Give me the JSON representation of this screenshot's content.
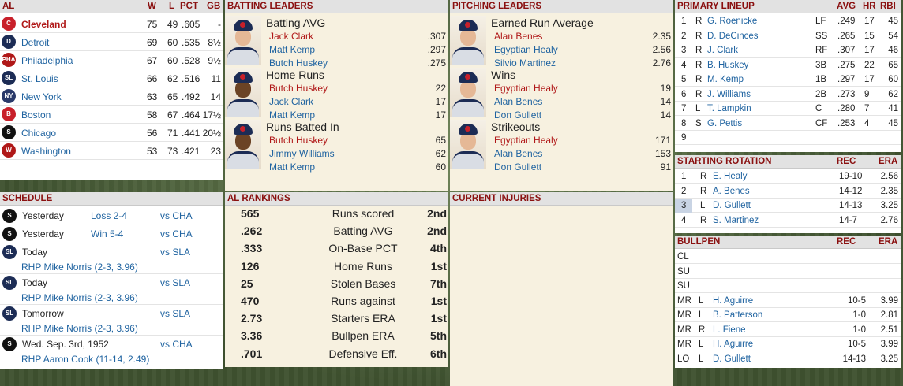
{
  "standings": {
    "header": {
      "league": "AL",
      "w": "W",
      "l": "L",
      "pct": "PCT",
      "gb": "GB"
    },
    "teams": [
      {
        "name": "Cleveland",
        "w": "75",
        "l": "49",
        "pct": ".605",
        "gb": "-",
        "logo": "C",
        "logo_color": "#c8202a"
      },
      {
        "name": "Detroit",
        "w": "69",
        "l": "60",
        "pct": ".535",
        "gb": "8½",
        "logo": "D",
        "logo_color": "#1c2c55"
      },
      {
        "name": "Philadelphia",
        "w": "67",
        "l": "60",
        "pct": ".528",
        "gb": "9½",
        "logo": "PHA",
        "logo_color": "#b01818"
      },
      {
        "name": "St. Louis",
        "w": "66",
        "l": "62",
        "pct": ".516",
        "gb": "11",
        "logo": "SL",
        "logo_color": "#1c2c55"
      },
      {
        "name": "New York",
        "w": "63",
        "l": "65",
        "pct": ".492",
        "gb": "14",
        "logo": "NY",
        "logo_color": "#2a3a6a"
      },
      {
        "name": "Boston",
        "w": "58",
        "l": "67",
        "pct": ".464",
        "gb": "17½",
        "logo": "B",
        "logo_color": "#c8202a"
      },
      {
        "name": "Chicago",
        "w": "56",
        "l": "71",
        "pct": ".441",
        "gb": "20½",
        "logo": "S",
        "logo_color": "#111111"
      },
      {
        "name": "Washington",
        "w": "53",
        "l": "73",
        "pct": ".421",
        "gb": "23",
        "logo": "W",
        "logo_color": "#b01818"
      }
    ]
  },
  "batting": {
    "title": "BATTING LEADERS",
    "cats": [
      {
        "name": "Batting AVG",
        "skin": "#e5b896",
        "rows": [
          {
            "p": "Jack Clark",
            "v": ".307",
            "c": "red"
          },
          {
            "p": "Matt Kemp",
            "v": ".297",
            "c": "blue"
          },
          {
            "p": "Butch Huskey",
            "v": ".275",
            "c": "blue"
          }
        ]
      },
      {
        "name": "Home Runs",
        "skin": "#6b4325",
        "rows": [
          {
            "p": "Butch Huskey",
            "v": "22",
            "c": "red"
          },
          {
            "p": "Jack Clark",
            "v": "17",
            "c": "blue"
          },
          {
            "p": "Matt Kemp",
            "v": "17",
            "c": "blue"
          }
        ]
      },
      {
        "name": "Runs Batted In",
        "skin": "#6b4325",
        "rows": [
          {
            "p": "Butch Huskey",
            "v": "65",
            "c": "red"
          },
          {
            "p": "Jimmy Williams",
            "v": "62",
            "c": "blue"
          },
          {
            "p": "Matt Kemp",
            "v": "60",
            "c": "blue"
          }
        ]
      }
    ]
  },
  "pitching": {
    "title": "PITCHING LEADERS",
    "cats": [
      {
        "name": "Earned Run Average",
        "skin": "#e5b896",
        "rows": [
          {
            "p": "Alan Benes",
            "v": "2.35",
            "c": "red"
          },
          {
            "p": "Egyptian Healy",
            "v": "2.56",
            "c": "blue"
          },
          {
            "p": "Silvio Martinez",
            "v": "2.76",
            "c": "blue"
          }
        ]
      },
      {
        "name": "Wins",
        "skin": "#e5b896",
        "rows": [
          {
            "p": "Egyptian Healy",
            "v": "19",
            "c": "red"
          },
          {
            "p": "Alan Benes",
            "v": "14",
            "c": "blue"
          },
          {
            "p": "Don Gullett",
            "v": "14",
            "c": "blue"
          }
        ]
      },
      {
        "name": "Strikeouts",
        "skin": "#e5b896",
        "rows": [
          {
            "p": "Egyptian Healy",
            "v": "171",
            "c": "red"
          },
          {
            "p": "Alan Benes",
            "v": "153",
            "c": "blue"
          },
          {
            "p": "Don Gullett",
            "v": "91",
            "c": "blue"
          }
        ]
      }
    ]
  },
  "lineup": {
    "title": "PRIMARY LINEUP",
    "h_avg": "AVG",
    "h_hr": "HR",
    "h_rbi": "RBI",
    "rows": [
      {
        "n": "1",
        "h": "R",
        "p": "G. Roenicke",
        "pos": "LF",
        "avg": ".249",
        "hr": "17",
        "rbi": "45"
      },
      {
        "n": "2",
        "h": "R",
        "p": "D. DeCinces",
        "pos": "SS",
        "avg": ".265",
        "hr": "15",
        "rbi": "54"
      },
      {
        "n": "3",
        "h": "R",
        "p": "J. Clark",
        "pos": "RF",
        "avg": ".307",
        "hr": "17",
        "rbi": "46"
      },
      {
        "n": "4",
        "h": "R",
        "p": "B. Huskey",
        "pos": "3B",
        "avg": ".275",
        "hr": "22",
        "rbi": "65"
      },
      {
        "n": "5",
        "h": "R",
        "p": "M. Kemp",
        "pos": "1B",
        "avg": ".297",
        "hr": "17",
        "rbi": "60"
      },
      {
        "n": "6",
        "h": "R",
        "p": "J. Williams",
        "pos": "2B",
        "avg": ".273",
        "hr": "9",
        "rbi": "62"
      },
      {
        "n": "7",
        "h": "L",
        "p": "T. Lampkin",
        "pos": "C",
        "avg": ".280",
        "hr": "7",
        "rbi": "41"
      },
      {
        "n": "8",
        "h": "S",
        "p": "G. Pettis",
        "pos": "CF",
        "avg": ".253",
        "hr": "4",
        "rbi": "45"
      },
      {
        "n": "9",
        "h": "",
        "p": "",
        "pos": "",
        "avg": "",
        "hr": "",
        "rbi": ""
      }
    ]
  },
  "rotation": {
    "title": "STARTING ROTATION",
    "h_rec": "REC",
    "h_era": "ERA",
    "rows": [
      {
        "n": "1",
        "h": "R",
        "p": "E. Healy",
        "rec": "19-10",
        "era": "2.56"
      },
      {
        "n": "2",
        "h": "R",
        "p": "A. Benes",
        "rec": "14-12",
        "era": "2.35"
      },
      {
        "n": "3",
        "h": "L",
        "p": "D. Gullett",
        "rec": "14-13",
        "era": "3.25"
      },
      {
        "n": "4",
        "h": "R",
        "p": "S. Martinez",
        "rec": "14-7",
        "era": "2.76"
      }
    ]
  },
  "bullpen": {
    "title": "BULLPEN",
    "h_rec": "REC",
    "h_era": "ERA",
    "rows": [
      {
        "role": "CL",
        "h": "",
        "p": "",
        "rec": "",
        "era": ""
      },
      {
        "role": "SU",
        "h": "",
        "p": "",
        "rec": "",
        "era": ""
      },
      {
        "role": "SU",
        "h": "",
        "p": "",
        "rec": "",
        "era": ""
      },
      {
        "role": "MR",
        "h": "L",
        "p": "H. Aguirre",
        "rec": "10-5",
        "era": "3.99"
      },
      {
        "role": "MR",
        "h": "L",
        "p": "B. Patterson",
        "rec": "1-0",
        "era": "2.81"
      },
      {
        "role": "MR",
        "h": "R",
        "p": "L. Fiene",
        "rec": "1-0",
        "era": "2.51"
      },
      {
        "role": "MR",
        "h": "L",
        "p": "H. Aguirre",
        "rec": "10-5",
        "era": "3.99"
      },
      {
        "role": "LO",
        "h": "L",
        "p": "D. Gullett",
        "rec": "14-13",
        "era": "3.25"
      }
    ]
  },
  "schedule": {
    "title": "SCHEDULE",
    "games": [
      {
        "logo": "S",
        "logo_color": "#111111",
        "when": "Yesterday",
        "result": "Loss 2-4",
        "opp": "vs CHA",
        "note": ""
      },
      {
        "logo": "S",
        "logo_color": "#111111",
        "when": "Yesterday",
        "result": "Win 5-4",
        "opp": "vs CHA",
        "note": ""
      },
      {
        "logo": "SL",
        "logo_color": "#1c2c55",
        "when": "Today",
        "result": "",
        "opp": "vs SLA",
        "note": "RHP Mike Norris (2-3, 3.96)"
      },
      {
        "logo": "SL",
        "logo_color": "#1c2c55",
        "when": "Today",
        "result": "",
        "opp": "vs SLA",
        "note": "RHP Mike Norris (2-3, 3.96)"
      },
      {
        "logo": "SL",
        "logo_color": "#1c2c55",
        "when": "Tomorrow",
        "result": "",
        "opp": "vs SLA",
        "note": "RHP Mike Norris (2-3, 3.96)"
      },
      {
        "logo": "S",
        "logo_color": "#111111",
        "when": "Wed. Sep. 3rd, 1952",
        "result": "",
        "opp": "vs CHA",
        "note": "RHP Aaron Cook (11-14, 2.49)"
      }
    ]
  },
  "rankings": {
    "title": "AL RANKINGS",
    "rows": [
      {
        "v": "565",
        "l": "Runs scored",
        "r": "2nd"
      },
      {
        "v": ".262",
        "l": "Batting AVG",
        "r": "2nd"
      },
      {
        "v": ".333",
        "l": "On-Base PCT",
        "r": "4th"
      },
      {
        "v": "126",
        "l": "Home Runs",
        "r": "1st"
      },
      {
        "v": "25",
        "l": "Stolen Bases",
        "r": "7th"
      },
      {
        "v": "470",
        "l": "Runs against",
        "r": "1st"
      },
      {
        "v": "2.73",
        "l": "Starters ERA",
        "r": "1st"
      },
      {
        "v": "3.36",
        "l": "Bullpen ERA",
        "r": "5th"
      },
      {
        "v": ".701",
        "l": "Defensive Eff.",
        "r": "6th"
      }
    ]
  },
  "injuries": {
    "title": "CURRENT INJURIES"
  }
}
